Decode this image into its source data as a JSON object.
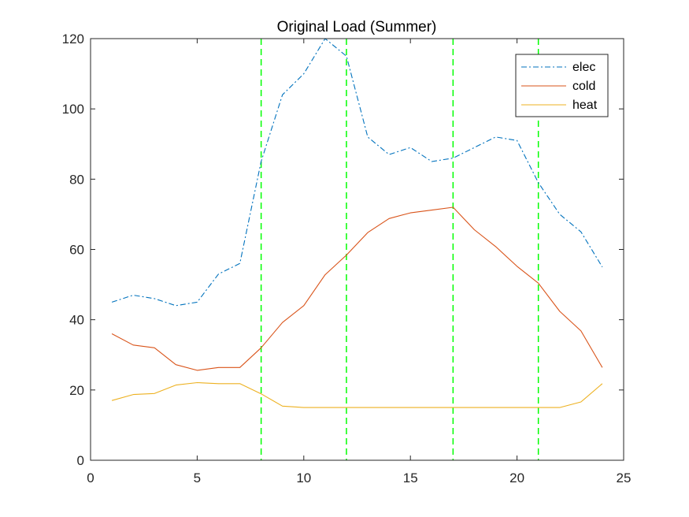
{
  "chart_data": {
    "type": "line",
    "title": "Original Load (Summer)",
    "xlabel": "",
    "ylabel": "",
    "xlim": [
      0,
      25
    ],
    "ylim": [
      0,
      120
    ],
    "xticks": [
      0,
      5,
      10,
      15,
      20,
      25
    ],
    "yticks": [
      0,
      20,
      40,
      60,
      80,
      100,
      120
    ],
    "grid": false,
    "legend_position": "top-right",
    "series": [
      {
        "name": "elec",
        "color": "#0072BD",
        "style": "dash-dot",
        "x": [
          1,
          2,
          3,
          4,
          5,
          6,
          7,
          8,
          9,
          10,
          11,
          12,
          13,
          14,
          15,
          16,
          17,
          18,
          19,
          20,
          21,
          22,
          23,
          24
        ],
        "values": [
          45,
          47,
          46,
          44,
          45,
          53,
          56,
          85,
          104,
          110,
          120,
          115,
          92,
          87,
          89,
          85,
          86,
          89,
          92,
          91,
          79,
          70,
          65,
          55
        ]
      },
      {
        "name": "cold",
        "color": "#D95319",
        "style": "solid",
        "x": [
          1,
          2,
          3,
          4,
          5,
          6,
          7,
          8,
          9,
          10,
          11,
          12,
          13,
          14,
          15,
          16,
          17,
          18,
          19,
          20,
          21,
          22,
          23,
          24
        ],
        "values": [
          36,
          32.8,
          32,
          27.2,
          25.6,
          26.4,
          26.4,
          32,
          39.2,
          44,
          52.8,
          58.4,
          64.8,
          68.8,
          70.4,
          71.2,
          72,
          65.6,
          60.8,
          55.2,
          50.4,
          42.4,
          36.8,
          26.4
        ]
      },
      {
        "name": "heat",
        "color": "#EDB120",
        "style": "solid",
        "x": [
          1,
          2,
          3,
          4,
          5,
          6,
          7,
          8,
          9,
          10,
          11,
          12,
          13,
          14,
          15,
          16,
          17,
          18,
          19,
          20,
          21,
          22,
          23,
          24
        ],
        "values": [
          17,
          18.7,
          19,
          21.4,
          22.1,
          21.8,
          21.8,
          18.9,
          15.4,
          15,
          15,
          15,
          15,
          15,
          15,
          15,
          15,
          15,
          15,
          15,
          15,
          15,
          16.6,
          21.8
        ]
      }
    ],
    "vertical_lines": {
      "x": [
        8,
        12,
        17,
        21
      ],
      "color": "#00FF00",
      "style": "dashed"
    }
  }
}
